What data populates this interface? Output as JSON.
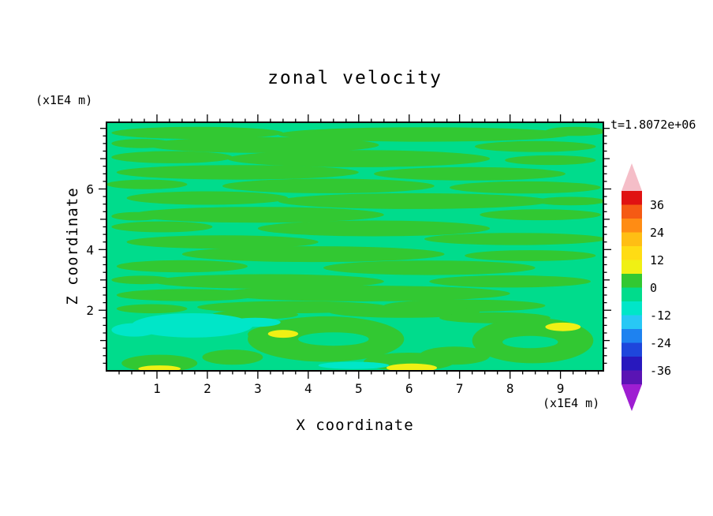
{
  "chart_data": {
    "type": "contour",
    "title": "zonal velocity",
    "time_label": "t=1.8072e+06",
    "xlabel": "X coordinate",
    "ylabel": "Z coordinate",
    "x_unit_label": "(x1E4 m)",
    "y_unit_label": "(x1E4 m)",
    "x_ticks": [
      "1",
      "2",
      "3",
      "4",
      "5",
      "6",
      "7",
      "8",
      "9"
    ],
    "y_ticks": [
      "2",
      "4",
      "6"
    ],
    "x_range": [
      0,
      9.85
    ],
    "z_range": [
      0,
      8.2
    ],
    "minor_tick_step": 0.25,
    "grid": false,
    "legend_position": "right-colorbar",
    "colorbar": {
      "tick_labels": [
        36,
        24,
        12,
        0,
        -12,
        -24,
        -36
      ],
      "segment_step": 6,
      "over_color": "#F5BEC8",
      "under_color": "#9E1ED2",
      "segments": [
        {
          "from": 36,
          "to": 42,
          "color": "#E01212"
        },
        {
          "from": 30,
          "to": 36,
          "color": "#F55A14"
        },
        {
          "from": 24,
          "to": 30,
          "color": "#FF8C14"
        },
        {
          "from": 18,
          "to": 24,
          "color": "#FFBE14"
        },
        {
          "from": 12,
          "to": 18,
          "color": "#FFDC14"
        },
        {
          "from": 6,
          "to": 12,
          "color": "#F0F014"
        },
        {
          "from": 0,
          "to": 6,
          "color": "#32C832"
        },
        {
          "from": -6,
          "to": 0,
          "color": "#00DC8C"
        },
        {
          "from": -12,
          "to": -6,
          "color": "#00E6C8"
        },
        {
          "from": -18,
          "to": -12,
          "color": "#28C8F5"
        },
        {
          "from": -24,
          "to": -18,
          "color": "#1E82F0"
        },
        {
          "from": -30,
          "to": -24,
          "color": "#1E46DC"
        },
        {
          "from": -36,
          "to": -30,
          "color": "#2818BE"
        },
        {
          "from": -42,
          "to": -36,
          "color": "#5A14B4"
        }
      ]
    },
    "field": {
      "description": "zonal velocity field, nearly uniform near 0; bands of 0..6 over base -6..0, patches of -12..-6 lower-left, small 6..12 spots near bottom",
      "base_color": "#00DC8C",
      "level_colors": {
        "g": "#32C832",
        "y": "#F0F014",
        "t": "#00E6C8",
        "b": "#00DC8C"
      },
      "level_values": {
        "g": "0..6",
        "y": "6..12",
        "t": "-12..-6",
        "b": "-6..0"
      },
      "blobs": [
        [
          1.8,
          7.85,
          1.7,
          0.2,
          "g"
        ],
        [
          6.3,
          7.8,
          2.9,
          0.24,
          "g"
        ],
        [
          9.3,
          7.9,
          0.6,
          0.15,
          "g"
        ],
        [
          3.1,
          7.45,
          2.3,
          0.26,
          "g"
        ],
        [
          8.5,
          7.4,
          1.2,
          0.18,
          "g"
        ],
        [
          0.7,
          7.5,
          0.6,
          0.15,
          "g"
        ],
        [
          1.3,
          7.05,
          1.2,
          0.2,
          "g"
        ],
        [
          5.0,
          7.0,
          2.6,
          0.28,
          "g"
        ],
        [
          8.8,
          6.95,
          0.9,
          0.16,
          "g"
        ],
        [
          2.6,
          6.55,
          2.4,
          0.24,
          "g"
        ],
        [
          7.2,
          6.5,
          1.9,
          0.22,
          "g"
        ],
        [
          0.8,
          6.15,
          0.8,
          0.16,
          "g"
        ],
        [
          4.4,
          6.1,
          2.1,
          0.24,
          "g"
        ],
        [
          8.3,
          6.05,
          1.5,
          0.2,
          "g"
        ],
        [
          2.0,
          5.7,
          1.6,
          0.22,
          "g"
        ],
        [
          6.1,
          5.6,
          2.7,
          0.26,
          "g"
        ],
        [
          9.2,
          5.6,
          0.7,
          0.14,
          "g"
        ],
        [
          3.0,
          5.15,
          2.5,
          0.26,
          "g"
        ],
        [
          8.6,
          5.15,
          1.2,
          0.18,
          "g"
        ],
        [
          0.6,
          5.1,
          0.5,
          0.14,
          "g"
        ],
        [
          1.1,
          4.75,
          1.0,
          0.18,
          "g"
        ],
        [
          5.3,
          4.7,
          2.3,
          0.26,
          "g"
        ],
        [
          8.1,
          4.35,
          1.8,
          0.2,
          "g"
        ],
        [
          2.3,
          4.25,
          1.9,
          0.22,
          "g"
        ],
        [
          4.1,
          3.85,
          2.6,
          0.26,
          "g"
        ],
        [
          8.4,
          3.8,
          1.3,
          0.18,
          "g"
        ],
        [
          1.5,
          3.45,
          1.3,
          0.2,
          "g"
        ],
        [
          6.4,
          3.4,
          2.1,
          0.24,
          "g"
        ],
        [
          3.2,
          2.95,
          2.3,
          0.24,
          "g"
        ],
        [
          8.0,
          2.95,
          1.6,
          0.2,
          "g"
        ],
        [
          0.7,
          3.0,
          0.6,
          0.14,
          "g"
        ],
        [
          5.1,
          2.55,
          2.9,
          0.26,
          "g"
        ],
        [
          1.6,
          2.5,
          1.4,
          0.2,
          "g"
        ],
        [
          7.1,
          2.15,
          1.6,
          0.2,
          "g"
        ],
        [
          3.7,
          2.1,
          1.9,
          0.2,
          "g"
        ],
        [
          0.9,
          2.05,
          0.7,
          0.15,
          "g"
        ],
        [
          5.9,
          1.95,
          1.5,
          0.2,
          "g"
        ],
        [
          2.95,
          1.85,
          0.85,
          0.15,
          "g"
        ],
        [
          7.7,
          1.75,
          1.1,
          0.18,
          "g"
        ],
        [
          4.35,
          1.05,
          1.55,
          0.75,
          "g"
        ],
        [
          3.4,
          1.2,
          0.6,
          0.3,
          "g"
        ],
        [
          8.45,
          1.0,
          1.2,
          0.75,
          "g"
        ],
        [
          6.0,
          0.3,
          0.9,
          0.3,
          "g"
        ],
        [
          1.05,
          0.25,
          0.75,
          0.28,
          "g"
        ],
        [
          2.5,
          0.45,
          0.6,
          0.25,
          "g"
        ],
        [
          6.9,
          0.5,
          0.7,
          0.3,
          "g"
        ],
        [
          4.5,
          1.05,
          0.7,
          0.22,
          "b"
        ],
        [
          8.4,
          0.95,
          0.55,
          0.2,
          "b"
        ],
        [
          1.7,
          1.5,
          1.2,
          0.4,
          "t"
        ],
        [
          0.55,
          1.35,
          0.45,
          0.22,
          "t"
        ],
        [
          2.95,
          1.6,
          0.5,
          0.15,
          "t"
        ],
        [
          4.9,
          0.18,
          0.7,
          0.12,
          "t"
        ],
        [
          3.5,
          1.22,
          0.3,
          0.13,
          "y"
        ],
        [
          6.05,
          0.1,
          0.5,
          0.14,
          "y"
        ],
        [
          9.05,
          1.45,
          0.35,
          0.14,
          "y"
        ],
        [
          1.05,
          0.07,
          0.42,
          0.11,
          "y"
        ]
      ]
    }
  }
}
